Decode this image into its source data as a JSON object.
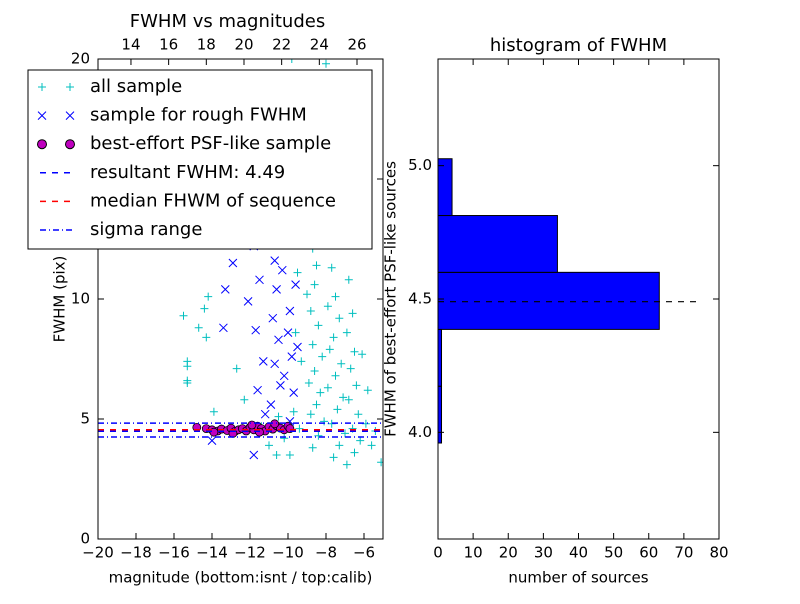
{
  "chart_data": [
    {
      "type": "scatter",
      "title": "FWHM vs magnitudes",
      "xlabel": "magnitude (bottom:isnt / top:calib)",
      "ylabel": "FWHM (pix)",
      "xlim": [
        -20,
        -5
      ],
      "xticks": [
        {
          "value": -20,
          "label": "−20"
        },
        {
          "value": -18,
          "label": "−18"
        },
        {
          "value": -16,
          "label": "−16"
        },
        {
          "value": -14,
          "label": "−14"
        },
        {
          "value": -12,
          "label": "−12"
        },
        {
          "value": -10,
          "label": "−10"
        },
        {
          "value": -8,
          "label": "−8"
        },
        {
          "value": -6,
          "label": "−6"
        }
      ],
      "ylim": [
        0,
        20
      ],
      "yticks": [
        0,
        5,
        10,
        15,
        20
      ],
      "top_xlim": [
        12.25,
        27.38
      ],
      "top_xticks": [
        14,
        16,
        18,
        20,
        22,
        24,
        26
      ],
      "legend": "upper left",
      "series": [
        {
          "name": "all sample",
          "color": "#00bfbf",
          "marker": "plus",
          "x": [
            -15.5,
            -15.3,
            -15.3,
            -15.3,
            -15.3,
            -14.7,
            -14.4,
            -14.2,
            -14.3,
            -13.9,
            -13.5,
            -12.7,
            -12.3,
            -11.4,
            -11,
            -10.6,
            -10.2,
            -10.5,
            -9.8,
            -9.5,
            -9.3,
            -9.2,
            -9.5,
            -9,
            -9.6,
            -9.3,
            -9.7,
            -9.4,
            -9.9,
            -8.9,
            -8.7,
            -8.5,
            -8.6,
            -8.8,
            -8.4,
            -8.7,
            -8.2,
            -8.6,
            -8.9,
            -8.3,
            -8.5,
            -8.8,
            -8.1,
            -8.4,
            -8.7,
            -8,
            -7.8,
            -7.9,
            -7.6,
            -7.7,
            -7.5,
            -7.9,
            -7.3,
            -7.6,
            -7.8,
            -7.2,
            -7.5,
            -7.9,
            -7.1,
            -7.4,
            -7.7,
            -7,
            -7.3,
            -7.6,
            -6.9,
            -6.8,
            -6.6,
            -6.9,
            -6.5,
            -6.7,
            -6.4,
            -6.8,
            -6.3,
            -6.6,
            -6.2,
            -6.5,
            -5.9,
            -5.6,
            -5.4,
            -5.1,
            -7.5,
            -8.3,
            -9.1,
            -6.1,
            -5.8
          ],
          "y": [
            9.3,
            7.4,
            7.2,
            6.6,
            6.5,
            8.8,
            9.6,
            10.1,
            8.4,
            5.3,
            4.6,
            7.1,
            5.8,
            4.7,
            3.9,
            3.5,
            4.2,
            5.1,
            20,
            16.2,
            14.5,
            12.3,
            11.1,
            10.2,
            8.6,
            7.4,
            5.3,
            4.6,
            3.5,
            13.8,
            12.1,
            11.4,
            10.6,
            9.5,
            8.9,
            8.1,
            7.6,
            7,
            6.5,
            6.1,
            5.6,
            5.2,
            4.9,
            4.3,
            3.8,
            19.8,
            16.7,
            13.2,
            12.5,
            11.3,
            10.1,
            9.7,
            9.2,
            8.4,
            7.9,
            7.3,
            6.8,
            6.3,
            5.9,
            5.4,
            4.8,
            4.4,
            3.9,
            3.4,
            3.1,
            10.8,
            9.4,
            8.6,
            7.8,
            7.1,
            6.4,
            5.8,
            5.2,
            4.6,
            4.1,
            3.6,
            4.8,
            3.9,
            4.5,
            3.2,
            17.2,
            15.2,
            18.6,
            7.7,
            6.2
          ]
        },
        {
          "name": "sample for rough FWHM",
          "color": "#0000ff",
          "marker": "x",
          "x": [
            -14,
            -13.4,
            -13.3,
            -11.9,
            -11.8,
            -11.5,
            -11.7,
            -11.3,
            -11.6,
            -11.2,
            -11.8,
            -11.1,
            -10.9,
            -10.7,
            -10.6,
            -10.8,
            -10.5,
            -10.7,
            -10.4,
            -10.9,
            -10.2,
            -10.1,
            -10.3,
            -9.9,
            -10,
            -9.8,
            -10.2,
            -9.7,
            -9.9,
            -9.6,
            -9.5,
            -12.9,
            -12.1,
            -9.4
          ],
          "y": [
            4.1,
            8.8,
            10.4,
            13.4,
            12.2,
            10.8,
            8.7,
            7.4,
            6.2,
            5.2,
            3.5,
            14.6,
            12.6,
            11.6,
            10.4,
            9.2,
            8.3,
            7.3,
            6.4,
            5.6,
            15.6,
            13.3,
            11.2,
            9.5,
            8.6,
            7.6,
            6.8,
            6.1,
            4.9,
            10.6,
            8,
            11.5,
            9.9,
            13.9
          ]
        },
        {
          "name": "best-effort PSF-like sample",
          "color": "#bf00bf",
          "marker": "circle",
          "x": [
            -14.8,
            -14.3,
            -14,
            -13.7,
            -13.5,
            -13.2,
            -13,
            -12.8,
            -12.6,
            -12.4,
            -12.2,
            -12,
            -11.8,
            -11.6,
            -11.4,
            -11.2,
            -11,
            -10.8,
            -10.6,
            -10.4,
            -10.2,
            -10,
            -9.9,
            -11.5,
            -12.9,
            -10.7,
            -11.9,
            -13.9
          ],
          "y": [
            4.65,
            4.6,
            4.55,
            4.5,
            4.58,
            4.52,
            4.62,
            4.48,
            4.55,
            4.6,
            4.5,
            4.65,
            4.55,
            4.7,
            4.6,
            4.5,
            4.68,
            4.58,
            4.72,
            4.62,
            4.55,
            4.7,
            4.6,
            4.45,
            4.4,
            4.8,
            4.75,
            4.45
          ]
        }
      ],
      "hlines": [
        {
          "name": "resultant FWHM: 4.49",
          "color": "#0000ff",
          "style": "dashed",
          "values": [
            4.49
          ]
        },
        {
          "name": "median FHWM of sequence",
          "color": "#ff0000",
          "style": "dashed",
          "values": [
            4.55
          ]
        },
        {
          "name": "sigma range",
          "color": "#0000ff",
          "style": "dashdot",
          "values": [
            4.25,
            4.83
          ]
        }
      ]
    },
    {
      "type": "barh",
      "title": "histogram of FWHM",
      "xlabel": "number of sources",
      "ylabel": "FWHM of best-effort PSF-like sources",
      "bins": [
        3.96,
        4.173,
        4.386,
        4.6,
        4.813,
        5.026
      ],
      "counts": [
        1,
        1,
        63,
        34,
        4
      ],
      "color": "#0000ff",
      "xlim": [
        0,
        80
      ],
      "xticks": [
        0,
        10,
        20,
        30,
        40,
        50,
        60,
        70,
        80
      ],
      "ylim": [
        3.6,
        5.4
      ],
      "yticks": [
        {
          "value": 4,
          "label": "4.0"
        },
        4.5,
        {
          "value": 5,
          "label": "5.0"
        }
      ],
      "hline": 4.49,
      "hline_color": "#000000"
    }
  ]
}
